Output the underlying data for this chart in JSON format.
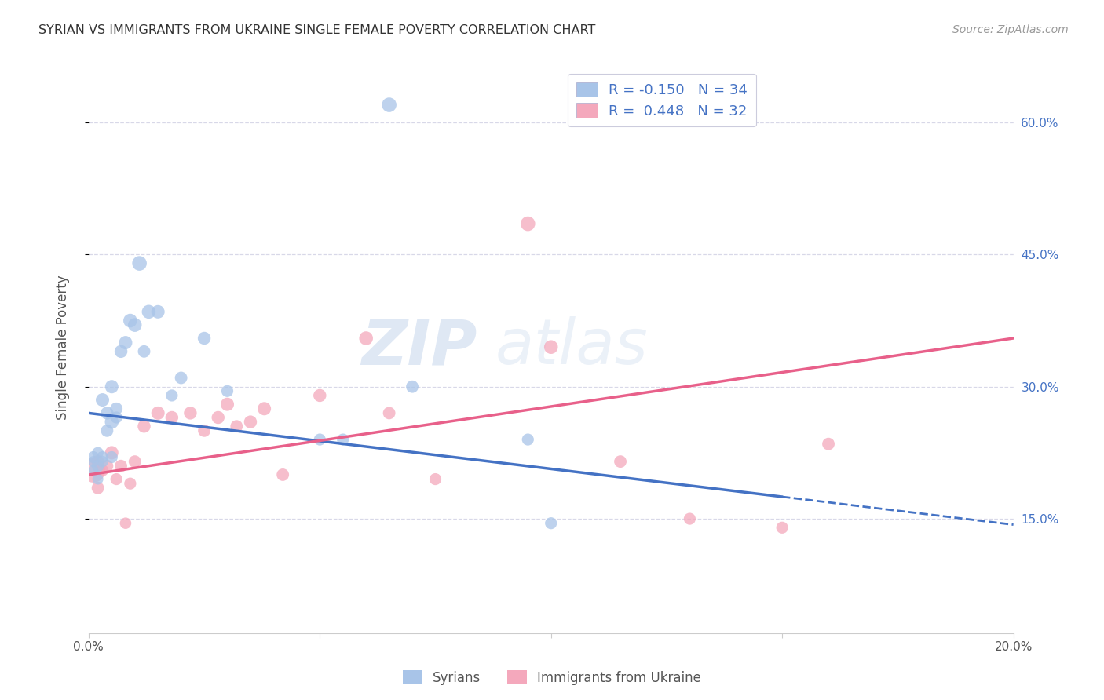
{
  "title": "SYRIAN VS IMMIGRANTS FROM UKRAINE SINGLE FEMALE POVERTY CORRELATION CHART",
  "source": "Source: ZipAtlas.com",
  "ylabel": "Single Female Poverty",
  "legend_label1": "Syrians",
  "legend_label2": "Immigrants from Ukraine",
  "R1": -0.15,
  "N1": 34,
  "R2": 0.448,
  "N2": 32,
  "color_syrian": "#a8c4e8",
  "color_ukraine": "#f4a8bc",
  "color_line_syrian": "#4472c4",
  "color_line_ukraine": "#e8608a",
  "watermark_zip": "ZIP",
  "watermark_atlas": "atlas",
  "background_color": "#ffffff",
  "grid_color": "#d8d8e8",
  "syrian_x": [
    0.001,
    0.001,
    0.001,
    0.002,
    0.002,
    0.002,
    0.003,
    0.003,
    0.003,
    0.004,
    0.004,
    0.005,
    0.005,
    0.005,
    0.006,
    0.006,
    0.007,
    0.008,
    0.009,
    0.01,
    0.011,
    0.012,
    0.013,
    0.015,
    0.018,
    0.02,
    0.025,
    0.03,
    0.05,
    0.055,
    0.065,
    0.07,
    0.095,
    0.1
  ],
  "syrian_y": [
    0.22,
    0.215,
    0.205,
    0.225,
    0.21,
    0.195,
    0.22,
    0.215,
    0.285,
    0.27,
    0.25,
    0.26,
    0.22,
    0.3,
    0.275,
    0.265,
    0.34,
    0.35,
    0.375,
    0.37,
    0.44,
    0.34,
    0.385,
    0.385,
    0.29,
    0.31,
    0.355,
    0.295,
    0.24,
    0.24,
    0.62,
    0.3,
    0.24,
    0.145
  ],
  "syrian_sizes": [
    120,
    100,
    90,
    110,
    130,
    100,
    120,
    110,
    150,
    140,
    130,
    160,
    120,
    150,
    130,
    120,
    140,
    150,
    160,
    160,
    180,
    130,
    160,
    150,
    120,
    130,
    140,
    120,
    120,
    120,
    180,
    130,
    120,
    120
  ],
  "ukraine_x": [
    0.001,
    0.002,
    0.002,
    0.003,
    0.004,
    0.005,
    0.006,
    0.007,
    0.008,
    0.009,
    0.01,
    0.012,
    0.015,
    0.018,
    0.022,
    0.025,
    0.028,
    0.03,
    0.032,
    0.035,
    0.038,
    0.042,
    0.05,
    0.06,
    0.065,
    0.075,
    0.095,
    0.1,
    0.115,
    0.13,
    0.15,
    0.16
  ],
  "ukraine_y": [
    0.205,
    0.185,
    0.215,
    0.205,
    0.21,
    0.225,
    0.195,
    0.21,
    0.145,
    0.19,
    0.215,
    0.255,
    0.27,
    0.265,
    0.27,
    0.25,
    0.265,
    0.28,
    0.255,
    0.26,
    0.275,
    0.2,
    0.29,
    0.355,
    0.27,
    0.195,
    0.485,
    0.345,
    0.215,
    0.15,
    0.14,
    0.235
  ],
  "ukraine_sizes": [
    500,
    130,
    140,
    120,
    130,
    150,
    120,
    130,
    110,
    120,
    130,
    140,
    150,
    140,
    140,
    130,
    140,
    150,
    130,
    140,
    150,
    130,
    140,
    160,
    130,
    120,
    180,
    160,
    130,
    120,
    120,
    130
  ],
  "xlim": [
    0.0,
    0.2
  ],
  "ylim": [
    0.02,
    0.67
  ],
  "xtick_positions": [
    0.0,
    0.05,
    0.1,
    0.15,
    0.2
  ],
  "xtick_labels": [
    "0.0%",
    "",
    "",
    "",
    "20.0%"
  ],
  "ytick_positions": [
    0.15,
    0.3,
    0.45,
    0.6
  ],
  "ytick_labels": [
    "15.0%",
    "30.0%",
    "45.0%",
    "60.0%"
  ],
  "line_syrian_x0": 0.0,
  "line_syrian_y0": 0.27,
  "line_syrian_x1": 0.15,
  "line_syrian_y1": 0.175,
  "line_ukrainian_x0": 0.0,
  "line_ukrainian_y0": 0.2,
  "line_ukrainian_x1": 0.2,
  "line_ukrainian_y1": 0.355
}
